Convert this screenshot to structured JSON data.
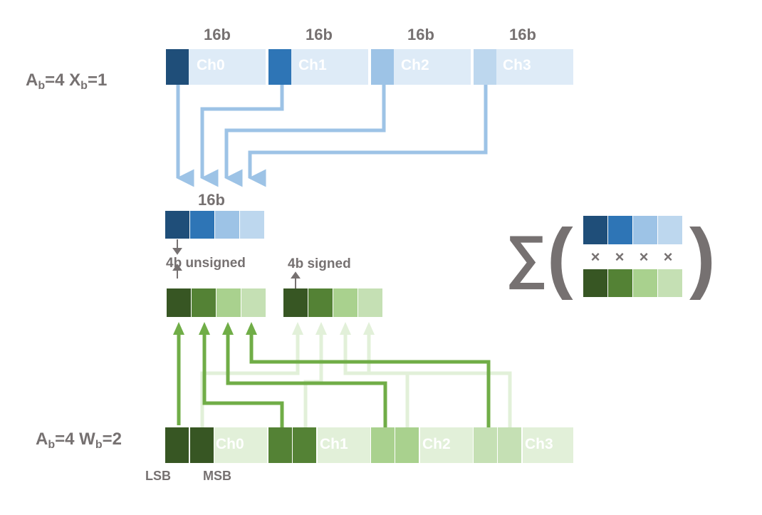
{
  "top_row": {
    "label_main": "A",
    "label_sub1": "b",
    "label_mid": "=4 X",
    "label_sub2": "b",
    "label_end": "=1",
    "bit_width_labels": [
      "16b",
      "16b",
      "16b",
      "16b"
    ],
    "channels": [
      "Ch0",
      "Ch1",
      "Ch2",
      "Ch3"
    ]
  },
  "packed_activation": {
    "bit_width_label": "16b"
  },
  "labels": {
    "unsigned": "4b unsigned",
    "signed": "4b signed"
  },
  "bottom_row": {
    "label_main": "A",
    "label_sub1": "b",
    "label_mid": "=4 W",
    "label_sub2": "b",
    "label_end": "=2",
    "channels": [
      "Ch0",
      "Ch1",
      "Ch2",
      "Ch3"
    ],
    "lsb_label": "LSB",
    "msb_label": "MSB"
  },
  "sum_expression": {
    "sigma": "∑",
    "open_paren": "(",
    "close_paren": ")",
    "multiply_symbol": "×"
  },
  "colors": {
    "blue": [
      "#1f4e79",
      "#2e75b6",
      "#9dc3e6",
      "#bdd7ee"
    ],
    "blue_bg": "#deebf7",
    "blue_arrow": "#9dc3e6",
    "green": [
      "#375623",
      "#548235",
      "#a9d18e",
      "#c5e0b4"
    ],
    "green_bg": "#e2f0d9",
    "green_arrow": "#70ad47",
    "green_arrow_faint": "#e2f0d9",
    "label_gray": "#767171"
  }
}
